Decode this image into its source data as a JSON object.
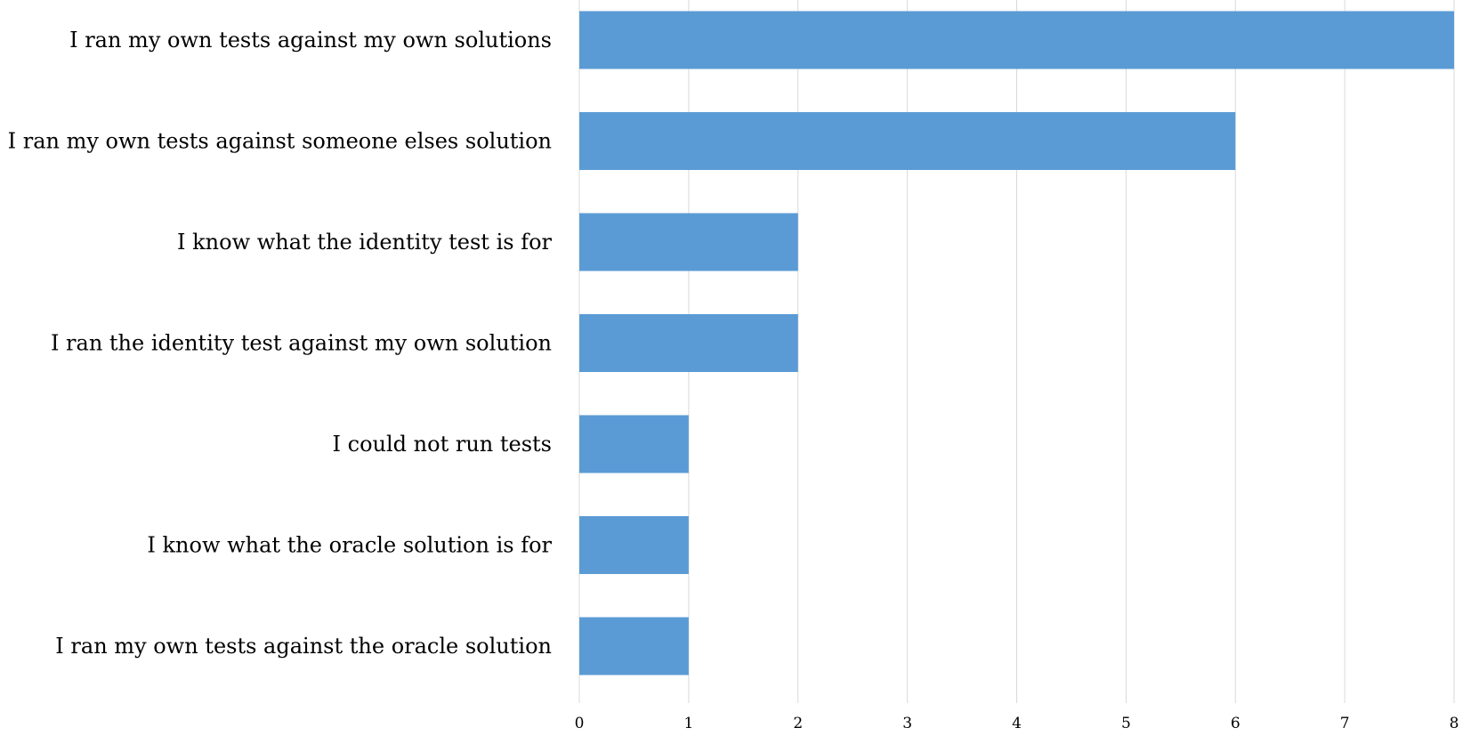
{
  "chart_data": {
    "type": "bar",
    "orientation": "horizontal",
    "categories": [
      "I ran my own tests against my own solutions",
      "I ran my own tests against someone elses solution",
      "I know what the identity test is for",
      "I ran the identity test against my own solution",
      "I could not run tests",
      "I know what the oracle solution is for",
      "I ran my own tests against the oracle solution"
    ],
    "values": [
      8,
      6,
      2,
      2,
      1,
      1,
      1
    ],
    "title": "",
    "xlabel": "",
    "ylabel": "",
    "xlim": [
      0,
      8
    ],
    "x_ticks": [
      "0",
      "1",
      "2",
      "3",
      "4",
      "5",
      "6",
      "7",
      "8"
    ],
    "grid": "vertical",
    "legend": "none",
    "bar_color": "#5b9bd5",
    "grid_color": "#d9d9d9"
  }
}
